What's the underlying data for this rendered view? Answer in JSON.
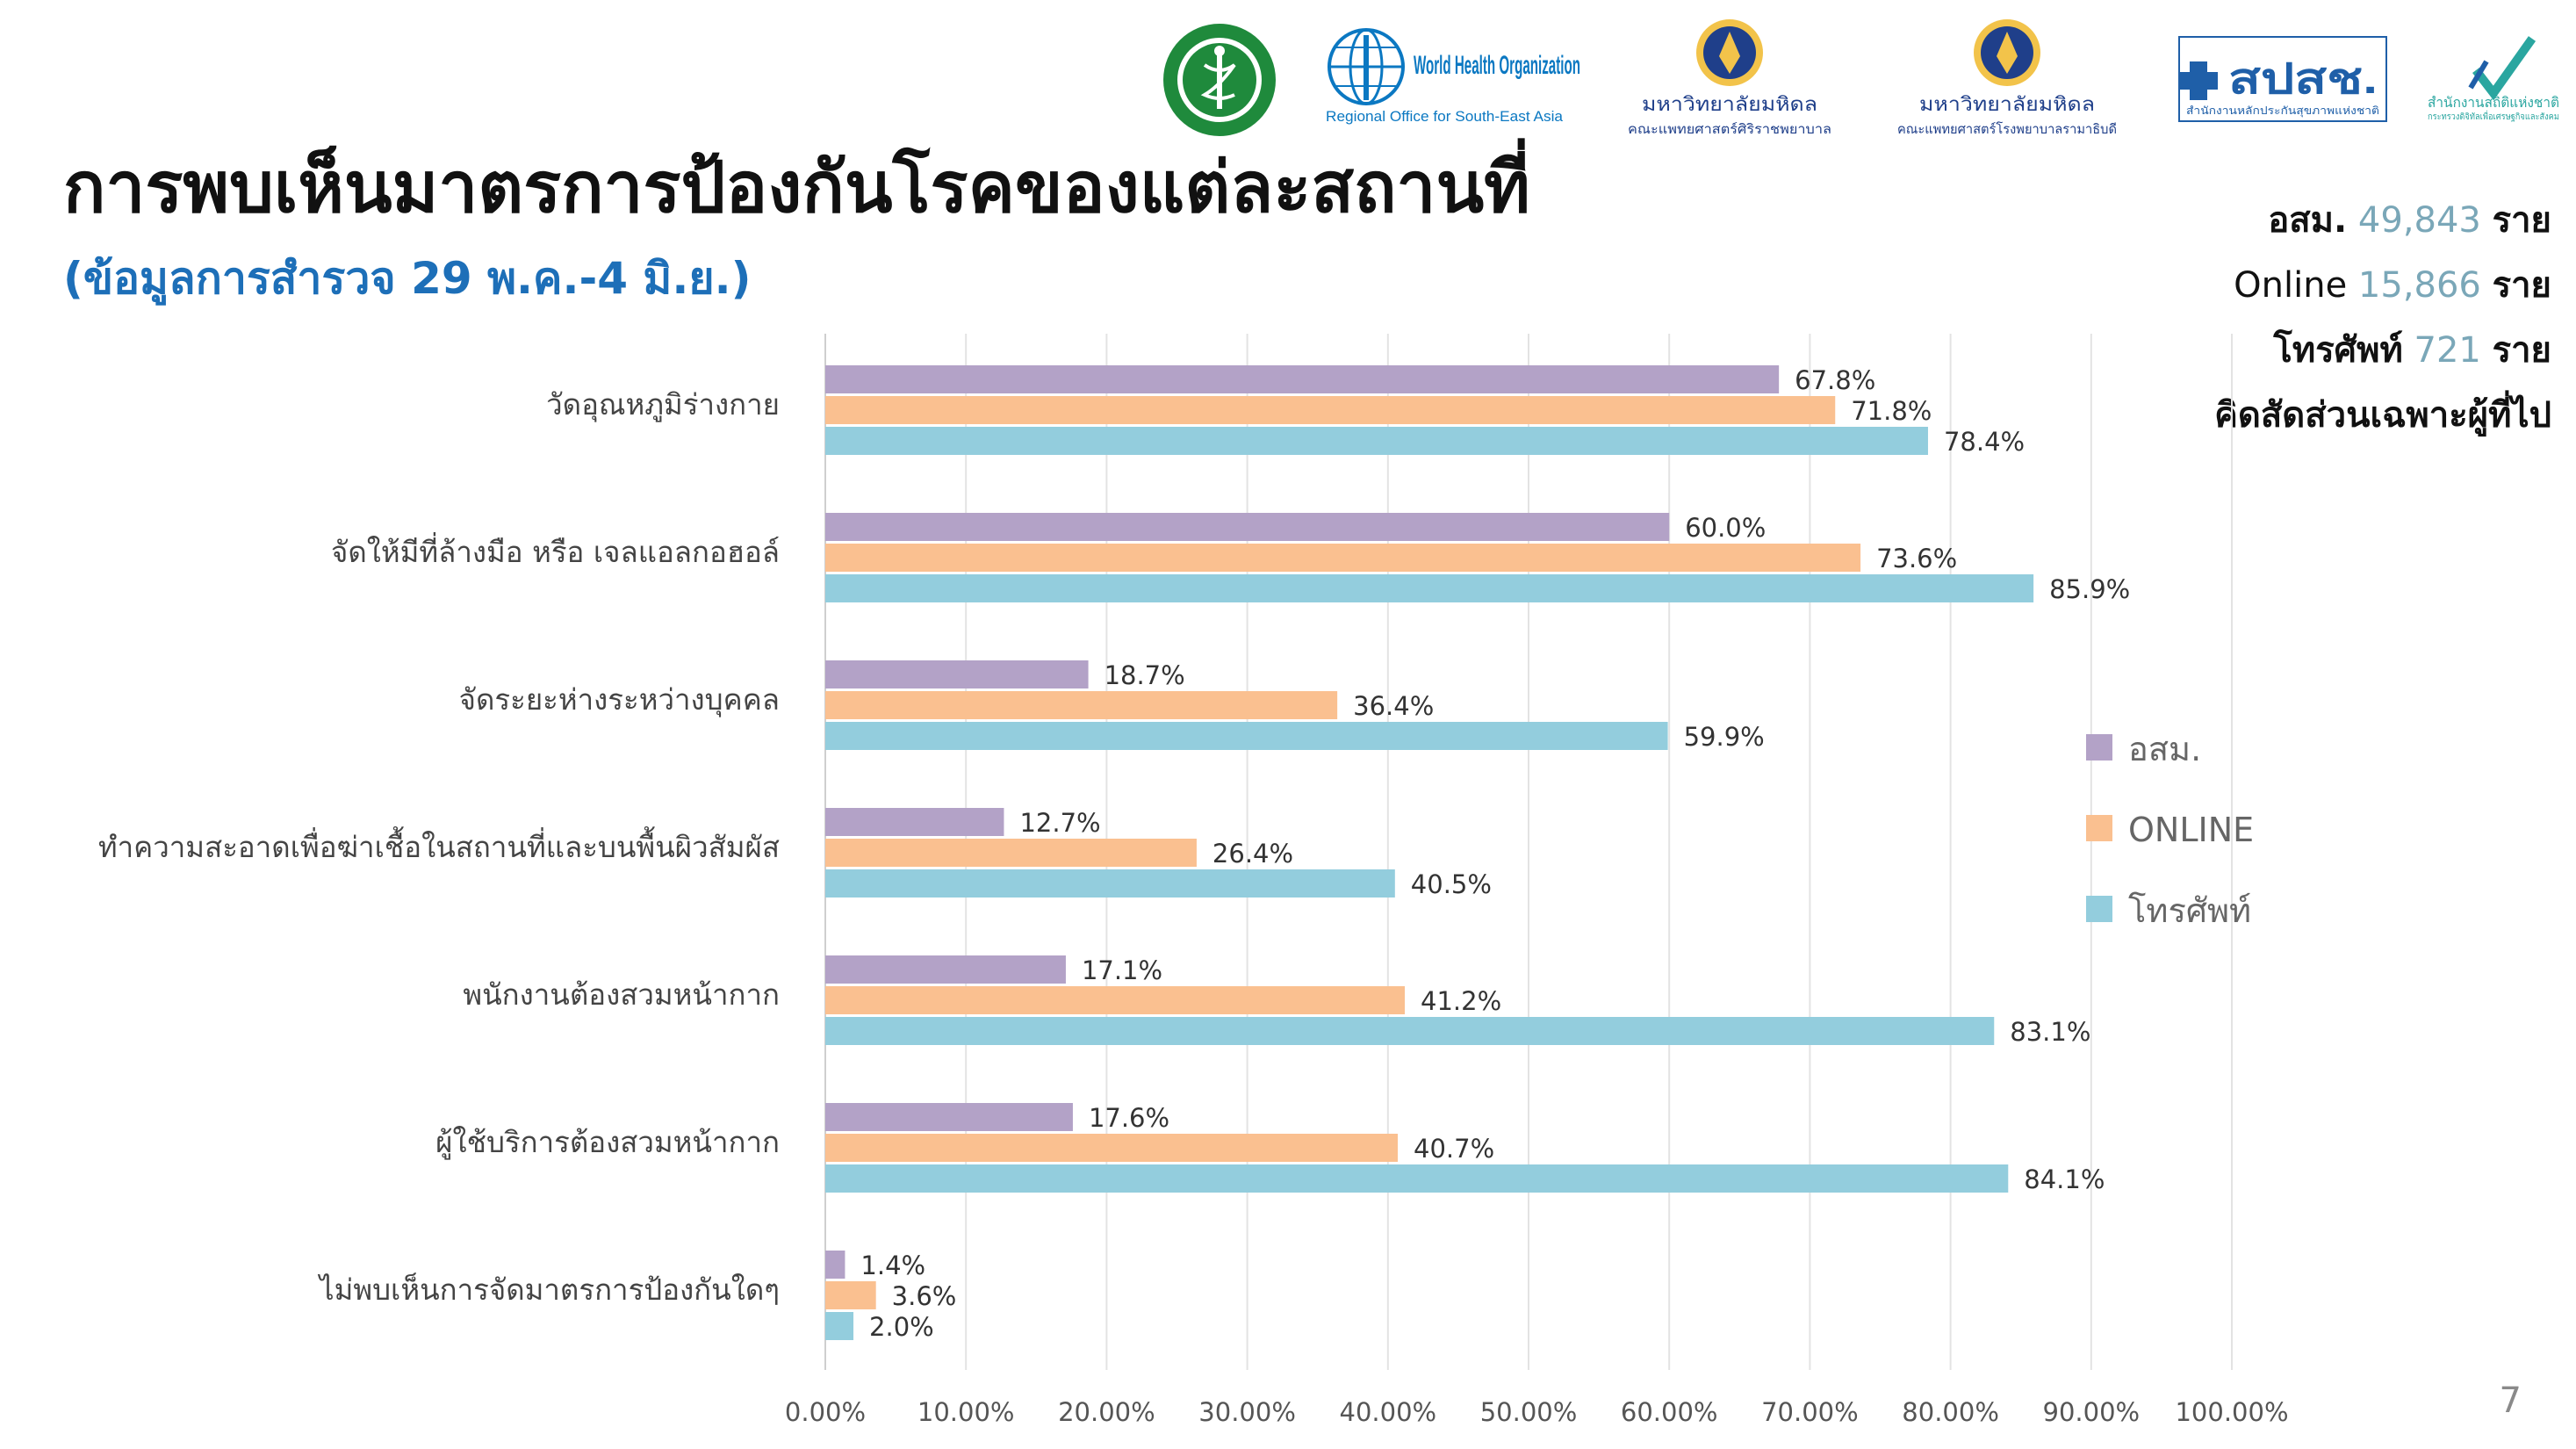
{
  "header": {
    "title": "การพบเห็นมาตรการป้องกันโรคของแต่ละสถานที่",
    "subtitle": "(ข้อมูลการสำรวจ 29 พ.ค.-4 มิ.ย.)"
  },
  "logos": [
    {
      "icon": "ministry-of-public-health-seal",
      "text": ""
    },
    {
      "icon": "who-emblem",
      "text": "World Health Organization",
      "subtext": "Regional Office for South-East Asia"
    },
    {
      "icon": "mahidol-seal",
      "text": "มหาวิทยาลัยมหิดล",
      "subtext": "คณะแพทยศาสตร์ศิริราชพยาบาล"
    },
    {
      "icon": "mahidol-seal",
      "text": "มหาวิทยาลัยมหิดล",
      "subtext": "คณะแพทยศาสตร์โรงพยาบาลรามาธิบดี"
    },
    {
      "icon": "nhso-logo",
      "text": "สปสช.",
      "subtext": "สำนักงานหลักประกันสุขภาพแห่งชาติ"
    },
    {
      "icon": "nso-logo",
      "text": "สำนักงานสถิติแห่งชาติ",
      "subtext": "กระทรวงดิจิทัลเพื่อเศรษฐกิจและสังคม"
    }
  ],
  "stats": [
    {
      "label": "อสม.",
      "value": "49,843",
      "unit": "ราย"
    },
    {
      "label": "Online",
      "value": "15,866",
      "unit": "ราย"
    },
    {
      "label": "โทรศัพท์",
      "value": "721",
      "unit": "ราย"
    }
  ],
  "stats_note": "คิดสัดส่วนเฉพาะผู้ที่ไป",
  "page_number": "7",
  "colors": {
    "osm": "#b3a2c7",
    "online": "#fac090",
    "phone": "#93cddd",
    "title": "#111111",
    "subtitle": "#1d6fb8"
  },
  "chart_data": {
    "type": "bar",
    "orientation": "horizontal",
    "categories": [
      "วัดอุณหภูมิร่างกาย",
      "จัดให้มีที่ล้างมือ หรือ เจลแอลกอฮอล์",
      "จัดระยะห่างระหว่างบุคคล",
      "ทำความสะอาดเพื่อฆ่าเชื้อในสถานที่และบนพื้นผิวสัมผัส",
      "พนักงานต้องสวมหน้ากาก",
      "ผู้ใช้บริการต้องสวมหน้ากาก",
      "ไม่พบเห็นการจัดมาตรการป้องกันใดๆ"
    ],
    "series": [
      {
        "name": "อสม.",
        "color": "#b3a2c7",
        "values": [
          67.8,
          60.0,
          18.7,
          12.7,
          17.1,
          17.6,
          1.4
        ]
      },
      {
        "name": "ONLINE",
        "color": "#fac090",
        "values": [
          71.8,
          73.6,
          36.4,
          26.4,
          41.2,
          40.7,
          3.6
        ]
      },
      {
        "name": "โทรศัพท์",
        "color": "#93cddd",
        "values": [
          78.4,
          85.9,
          59.9,
          40.5,
          83.1,
          84.1,
          2.0
        ]
      }
    ],
    "value_labels": [
      [
        "67.8%",
        "60.0%",
        "18.7%",
        "12.7%",
        "17.1%",
        "17.6%",
        "1.4%"
      ],
      [
        "71.8%",
        "73.6%",
        "36.4%",
        "26.4%",
        "41.2%",
        "40.7%",
        "3.6%"
      ],
      [
        "78.4%",
        "85.9%",
        "59.9%",
        "40.5%",
        "83.1%",
        "84.1%",
        "2.0%"
      ]
    ],
    "xlim": [
      0,
      100
    ],
    "xticks": [
      "0.00%",
      "10.00%",
      "20.00%",
      "30.00%",
      "40.00%",
      "50.00%",
      "60.00%",
      "70.00%",
      "80.00%",
      "90.00%",
      "100.00%"
    ],
    "grid": true,
    "legend_position": "right"
  }
}
